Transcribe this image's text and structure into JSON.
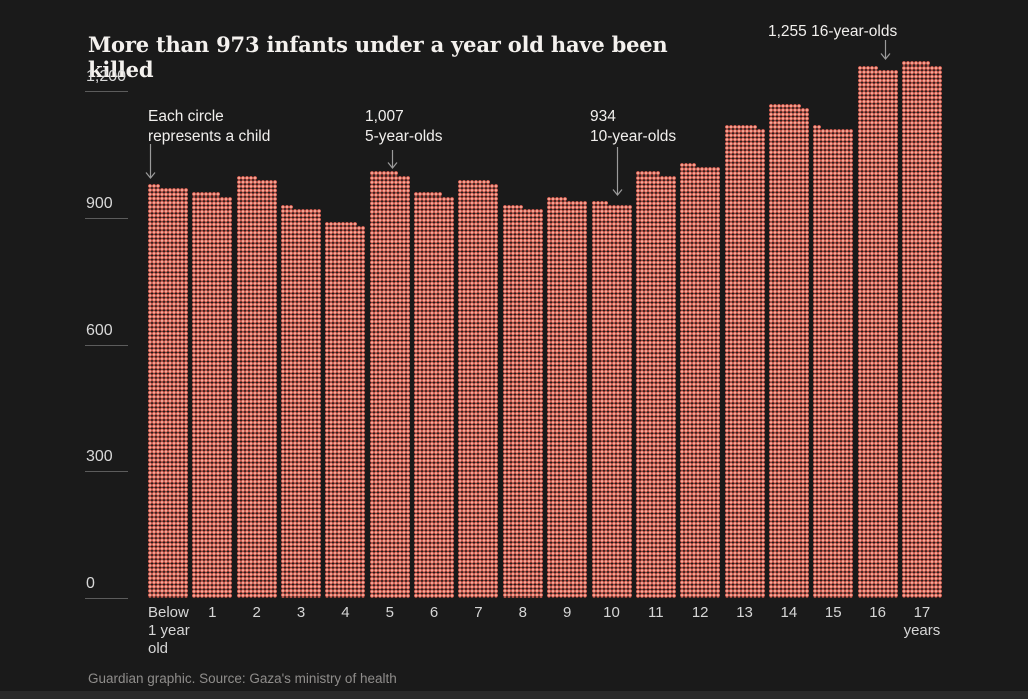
{
  "title": "More than 973 infants under a year old have been killed",
  "footer": "Guardian graphic. Source: Gaza's ministry of health",
  "colors": {
    "background": "#1a1a1a",
    "dot_fill": "#e4675a",
    "dot_highlight": "#f8c9bb",
    "axis_text": "#d9d9d9",
    "tick_line": "#5c5c5c",
    "annotation_text": "#f1efed",
    "arrow": "#9b9b9b",
    "title_text": "#f4f1ee",
    "footer_text": "#8f8d8b"
  },
  "annotations": [
    {
      "id": "each-circle",
      "lines": [
        "Each circle",
        "represents a child"
      ]
    },
    {
      "id": "age-5",
      "lines": [
        "1,007",
        "5-year-olds"
      ]
    },
    {
      "id": "age-10",
      "lines": [
        "934",
        "10-year-olds"
      ]
    },
    {
      "id": "age-16",
      "lines": [
        "1,255 16-year-olds"
      ]
    }
  ],
  "chart_data": {
    "type": "bar",
    "subtype": "dot-matrix",
    "unit_note": "each circle represents one child",
    "title": "More than 973 infants under a year old have been killed",
    "categories": [
      "Below 1 year old",
      "1",
      "2",
      "3",
      "4",
      "5",
      "6",
      "7",
      "8",
      "9",
      "10",
      "11",
      "12",
      "13",
      "14",
      "15",
      "16",
      "17 years"
    ],
    "values": [
      973,
      957,
      995,
      923,
      888,
      1007,
      957,
      988,
      925,
      945,
      934,
      1006,
      1024,
      1118,
      1168,
      1112,
      1255,
      1267
    ],
    "labeled_points": [
      {
        "category": "Below 1 year old",
        "value": 973
      },
      {
        "category": "5",
        "value": 1007
      },
      {
        "category": "10",
        "value": 934
      },
      {
        "category": "16",
        "value": 1255
      }
    ],
    "xlabels": [
      [
        "Below",
        "1 year",
        "old"
      ],
      [
        "1"
      ],
      [
        "2"
      ],
      [
        "3"
      ],
      [
        "4"
      ],
      [
        "5"
      ],
      [
        "6"
      ],
      [
        "7"
      ],
      [
        "8"
      ],
      [
        "9"
      ],
      [
        "10"
      ],
      [
        "11"
      ],
      [
        "12"
      ],
      [
        "13"
      ],
      [
        "14"
      ],
      [
        "15"
      ],
      [
        "16"
      ],
      [
        "17",
        "years"
      ]
    ],
    "yticks": [
      {
        "label": "1,200",
        "value": 1200
      },
      {
        "label": "900",
        "value": 900
      },
      {
        "label": "600",
        "value": 600
      },
      {
        "label": "300",
        "value": 300
      },
      {
        "label": "0",
        "value": 0
      }
    ],
    "ylim": [
      0,
      1300
    ],
    "xlabel": "years",
    "ylabel": "",
    "grid": false,
    "legend": "none",
    "source": "Gaza's ministry of health"
  }
}
